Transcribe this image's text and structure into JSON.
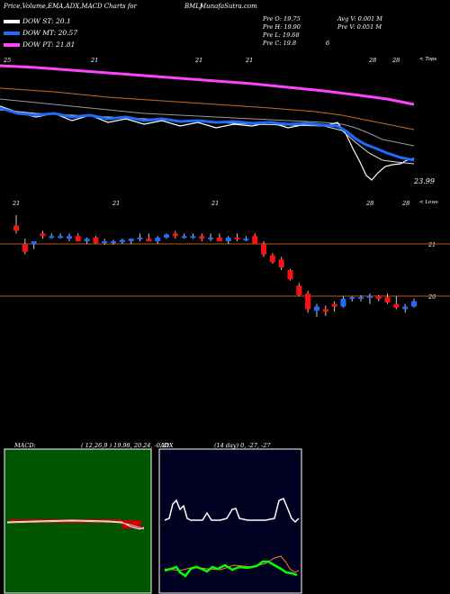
{
  "header": {
    "title": "Price,Volume,EMA,ADX,MACD Charts for",
    "symbol": "BMLJ",
    "site": "MunafaSutra.com"
  },
  "legend": [
    {
      "label": "DOW ST: 20.1",
      "color": "#ffffff"
    },
    {
      "label": "DOW MT: 20.57",
      "color": "#1f6bff"
    },
    {
      "label": "DOW PT: 21.81",
      "color": "#ff44ff"
    }
  ],
  "ohlc": {
    "open": "Pre   O: 19.75",
    "high": "Pre   H: 19.90",
    "low": "Pre   L: 19.68",
    "close": "Pre   C: 19.8",
    "close_extra": "6",
    "avg_volume": "Avg V: 0.001 M",
    "volume": "Pre   V: 0.051 M"
  },
  "ema_panel": {
    "date_labels": [
      "25",
      "21",
      "21",
      "21",
      "28",
      "28"
    ],
    "corner": "< Tops",
    "last_price": "23.99"
  },
  "candle_panel": {
    "date_labels": [
      "21",
      "21",
      "21",
      "28",
      "28"
    ],
    "corner": "< Lows",
    "price_levels": [
      21,
      20
    ],
    "price_labels": [
      "21",
      "20"
    ]
  },
  "macd": {
    "label": "MACD:",
    "values": "( 12,26,9 ) 19.98, 20.24, -0.31"
  },
  "adx": {
    "label": "ADX",
    "values": "(14 day) 0, -27, -27"
  },
  "colors": {
    "up": "#1f6bff",
    "down": "#ff1010",
    "short_ema": "#ffffff",
    "mid_ema": "#1f6bff",
    "long_ema": "#ff44ff",
    "ema_orange": "#cc6a1a",
    "macd_bg": "#005500",
    "adx_bg": "#000020"
  },
  "chart_data": {
    "type": "candlestick",
    "ylim": [
      19.4,
      21.5
    ],
    "candles": [
      {
        "o": 21.35,
        "h": 21.55,
        "l": 21.2,
        "c": 21.25
      },
      {
        "o": 21.0,
        "h": 21.1,
        "l": 20.8,
        "c": 20.85
      },
      {
        "o": 21.0,
        "h": 21.05,
        "l": 20.9,
        "c": 21.05
      },
      {
        "o": 21.2,
        "h": 21.25,
        "l": 21.1,
        "c": 21.15
      },
      {
        "o": 21.15,
        "h": 21.2,
        "l": 21.1,
        "c": 21.15
      },
      {
        "o": 21.15,
        "h": 21.2,
        "l": 21.1,
        "c": 21.15
      },
      {
        "o": 21.1,
        "h": 21.2,
        "l": 21.05,
        "c": 21.15
      },
      {
        "o": 21.15,
        "h": 21.2,
        "l": 21.05,
        "c": 21.05
      },
      {
        "o": 21.05,
        "h": 21.12,
        "l": 21.0,
        "c": 21.1
      },
      {
        "o": 21.12,
        "h": 21.15,
        "l": 21.0,
        "c": 21.02
      },
      {
        "o": 21.05,
        "h": 21.1,
        "l": 20.98,
        "c": 21.05
      },
      {
        "o": 21.02,
        "h": 21.08,
        "l": 20.98,
        "c": 21.05
      },
      {
        "o": 21.03,
        "h": 21.1,
        "l": 21.0,
        "c": 21.08
      },
      {
        "o": 21.05,
        "h": 21.1,
        "l": 21.0,
        "c": 21.1
      },
      {
        "o": 21.1,
        "h": 21.2,
        "l": 21.05,
        "c": 21.12
      },
      {
        "o": 21.1,
        "h": 21.2,
        "l": 21.05,
        "c": 21.05
      },
      {
        "o": 21.05,
        "h": 21.15,
        "l": 21.0,
        "c": 21.12
      },
      {
        "o": 21.12,
        "h": 21.2,
        "l": 21.1,
        "c": 21.18
      },
      {
        "o": 21.2,
        "h": 21.25,
        "l": 21.1,
        "c": 21.15
      },
      {
        "o": 21.15,
        "h": 21.2,
        "l": 21.1,
        "c": 21.15
      },
      {
        "o": 21.15,
        "h": 21.2,
        "l": 21.1,
        "c": 21.15
      },
      {
        "o": 21.15,
        "h": 21.2,
        "l": 21.05,
        "c": 21.1
      },
      {
        "o": 21.1,
        "h": 21.2,
        "l": 21.05,
        "c": 21.12
      },
      {
        "o": 21.12,
        "h": 21.2,
        "l": 21.05,
        "c": 21.05
      },
      {
        "o": 21.05,
        "h": 21.15,
        "l": 21.0,
        "c": 21.12
      },
      {
        "o": 21.12,
        "h": 21.2,
        "l": 21.05,
        "c": 21.1
      },
      {
        "o": 21.08,
        "h": 21.15,
        "l": 21.05,
        "c": 21.1
      },
      {
        "o": 21.15,
        "h": 21.2,
        "l": 21.0,
        "c": 21.0
      },
      {
        "o": 21.0,
        "h": 21.05,
        "l": 20.75,
        "c": 20.8
      },
      {
        "o": 20.78,
        "h": 20.82,
        "l": 20.62,
        "c": 20.65
      },
      {
        "o": 20.7,
        "h": 20.75,
        "l": 20.5,
        "c": 20.55
      },
      {
        "o": 20.5,
        "h": 20.52,
        "l": 20.3,
        "c": 20.32
      },
      {
        "o": 20.2,
        "h": 20.25,
        "l": 20.0,
        "c": 20.02
      },
      {
        "o": 20.05,
        "h": 20.1,
        "l": 19.68,
        "c": 19.75
      },
      {
        "o": 19.72,
        "h": 19.85,
        "l": 19.6,
        "c": 19.8
      },
      {
        "o": 19.75,
        "h": 19.82,
        "l": 19.62,
        "c": 19.7
      },
      {
        "o": 19.85,
        "h": 19.9,
        "l": 19.7,
        "c": 19.8
      },
      {
        "o": 19.8,
        "h": 20.0,
        "l": 19.78,
        "c": 19.95
      },
      {
        "o": 19.95,
        "h": 20.0,
        "l": 19.9,
        "c": 19.98
      },
      {
        "o": 19.98,
        "h": 20.02,
        "l": 19.9,
        "c": 19.98
      },
      {
        "o": 19.98,
        "h": 20.05,
        "l": 19.85,
        "c": 20.0
      },
      {
        "o": 20.0,
        "h": 20.02,
        "l": 19.9,
        "c": 19.95
      },
      {
        "o": 19.98,
        "h": 20.05,
        "l": 19.85,
        "c": 19.88
      },
      {
        "o": 19.85,
        "h": 20.0,
        "l": 19.75,
        "c": 19.78
      },
      {
        "o": 19.75,
        "h": 19.85,
        "l": 19.68,
        "c": 19.8
      },
      {
        "o": 19.8,
        "h": 19.95,
        "l": 19.78,
        "c": 19.9
      }
    ]
  }
}
